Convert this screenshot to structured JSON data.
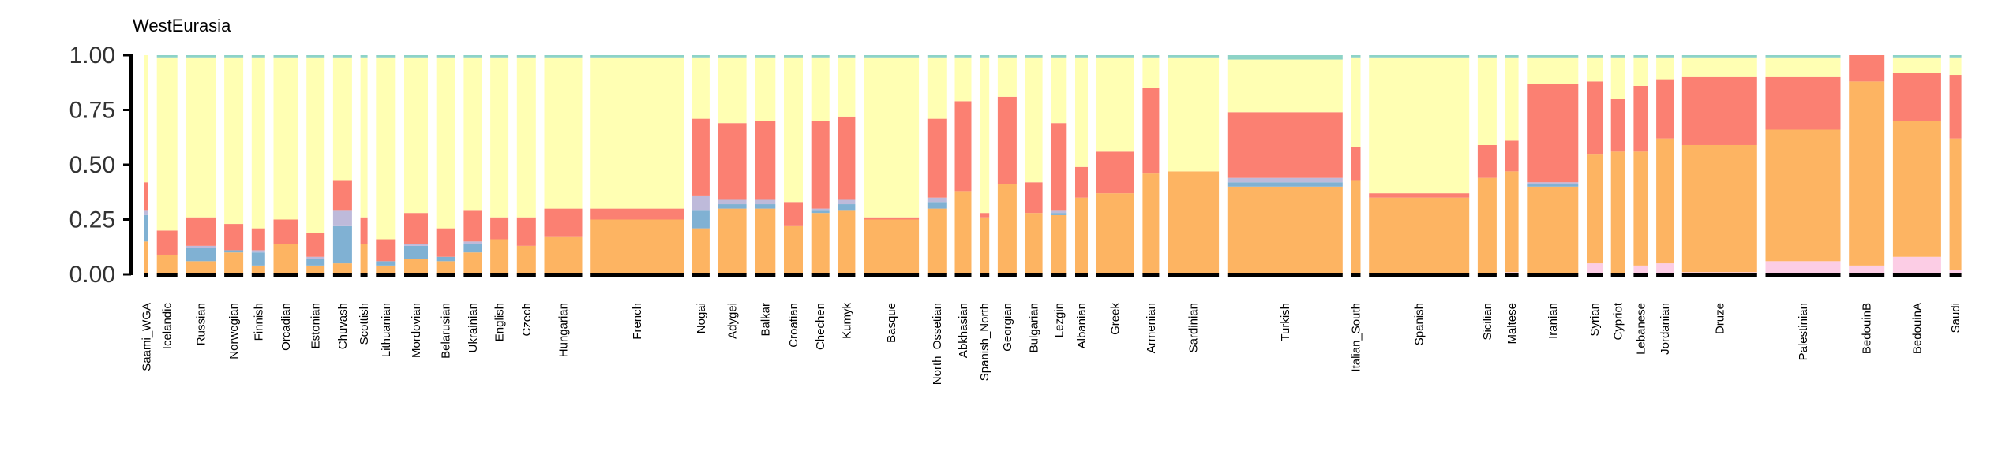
{
  "chart_data": {
    "type": "bar",
    "subtype": "stacked-admixture",
    "title": "WestEurasia",
    "ylim": [
      0,
      1
    ],
    "yticks": [
      "0.00",
      "0.25",
      "0.50",
      "0.75",
      "1.00"
    ],
    "grid": false,
    "colors": {
      "orange": "#fdb462",
      "blue": "#80b1d3",
      "lavender": "#bebada",
      "salmon": "#fb8072",
      "yellow": "#ffffb3",
      "pink": "#fccde5",
      "teal": "#8dd3c7",
      "group_bar": "#000000"
    },
    "components": [
      "pink",
      "orange",
      "blue",
      "lavender",
      "salmon",
      "yellow",
      "teal"
    ],
    "populations": [
      {
        "name": "Saami_WGA",
        "width": 5,
        "values": [
          0.0,
          0.15,
          0.12,
          0.02,
          0.13,
          0.58,
          0.0
        ]
      },
      {
        "name": "Icelandic",
        "width": 26,
        "values": [
          0.0,
          0.09,
          0.0,
          0.0,
          0.11,
          0.79,
          0.01
        ]
      },
      {
        "name": "Russian",
        "width": 38,
        "values": [
          0.0,
          0.06,
          0.06,
          0.01,
          0.13,
          0.73,
          0.01
        ]
      },
      {
        "name": "Norwegian",
        "width": 24,
        "values": [
          0.0,
          0.1,
          0.01,
          0.0,
          0.12,
          0.76,
          0.01
        ]
      },
      {
        "name": "Finnish",
        "width": 17,
        "values": [
          0.0,
          0.04,
          0.06,
          0.01,
          0.1,
          0.78,
          0.01
        ]
      },
      {
        "name": "Orcadian",
        "width": 31,
        "values": [
          0.0,
          0.14,
          0.0,
          0.0,
          0.11,
          0.74,
          0.01
        ]
      },
      {
        "name": "Estonian",
        "width": 23,
        "values": [
          0.0,
          0.04,
          0.03,
          0.01,
          0.11,
          0.8,
          0.01
        ]
      },
      {
        "name": "Chuvash",
        "width": 24,
        "values": [
          0.0,
          0.05,
          0.17,
          0.07,
          0.14,
          0.56,
          0.01
        ]
      },
      {
        "name": "Scottish",
        "width": 9,
        "values": [
          0.0,
          0.14,
          0.0,
          0.0,
          0.12,
          0.73,
          0.01
        ]
      },
      {
        "name": "Lithuanian",
        "width": 25,
        "values": [
          0.0,
          0.04,
          0.02,
          0.0,
          0.1,
          0.83,
          0.01
        ]
      },
      {
        "name": "Mordovian",
        "width": 30,
        "values": [
          0.0,
          0.07,
          0.06,
          0.01,
          0.14,
          0.71,
          0.01
        ]
      },
      {
        "name": "Belarusian",
        "width": 24,
        "values": [
          0.0,
          0.06,
          0.02,
          0.0,
          0.13,
          0.78,
          0.01
        ]
      },
      {
        "name": "Ukrainian",
        "width": 23,
        "values": [
          0.0,
          0.1,
          0.04,
          0.01,
          0.14,
          0.7,
          0.01
        ]
      },
      {
        "name": "English",
        "width": 23,
        "values": [
          0.0,
          0.16,
          0.0,
          0.0,
          0.1,
          0.73,
          0.01
        ]
      },
      {
        "name": "Czech",
        "width": 24,
        "values": [
          0.0,
          0.13,
          0.0,
          0.0,
          0.13,
          0.73,
          0.01
        ]
      },
      {
        "name": "Hungarian",
        "width": 48,
        "values": [
          0.0,
          0.17,
          0.0,
          0.0,
          0.13,
          0.69,
          0.01
        ]
      },
      {
        "name": "French",
        "width": 118,
        "values": [
          0.0,
          0.25,
          0.0,
          0.0,
          0.05,
          0.69,
          0.01
        ]
      },
      {
        "name": "Nogai",
        "width": 22,
        "values": [
          0.0,
          0.21,
          0.08,
          0.07,
          0.35,
          0.28,
          0.01
        ]
      },
      {
        "name": "Adygei",
        "width": 36,
        "values": [
          0.0,
          0.3,
          0.02,
          0.02,
          0.35,
          0.3,
          0.01
        ]
      },
      {
        "name": "Balkar",
        "width": 26,
        "values": [
          0.0,
          0.3,
          0.02,
          0.02,
          0.36,
          0.29,
          0.01
        ]
      },
      {
        "name": "Croatian",
        "width": 24,
        "values": [
          0.0,
          0.22,
          0.0,
          0.0,
          0.11,
          0.66,
          0.01
        ]
      },
      {
        "name": "Chechen",
        "width": 23,
        "values": [
          0.0,
          0.28,
          0.01,
          0.01,
          0.4,
          0.29,
          0.01
        ]
      },
      {
        "name": "Kumyk",
        "width": 22,
        "values": [
          0.0,
          0.29,
          0.03,
          0.02,
          0.38,
          0.27,
          0.01
        ]
      },
      {
        "name": "Basque",
        "width": 70,
        "values": [
          0.0,
          0.25,
          0.0,
          0.0,
          0.01,
          0.73,
          0.01
        ]
      },
      {
        "name": "North_Ossetian",
        "width": 24,
        "values": [
          0.0,
          0.3,
          0.03,
          0.02,
          0.36,
          0.28,
          0.01
        ]
      },
      {
        "name": "Abkhasian",
        "width": 21,
        "values": [
          0.0,
          0.38,
          0.0,
          0.0,
          0.41,
          0.2,
          0.01
        ]
      },
      {
        "name": "Spanish_North",
        "width": 12,
        "values": [
          0.0,
          0.26,
          0.0,
          0.0,
          0.02,
          0.71,
          0.01
        ]
      },
      {
        "name": "Georgian",
        "width": 24,
        "values": [
          0.0,
          0.41,
          0.0,
          0.0,
          0.4,
          0.18,
          0.01
        ]
      },
      {
        "name": "Bulgarian",
        "width": 22,
        "values": [
          0.0,
          0.28,
          0.0,
          0.0,
          0.14,
          0.57,
          0.01
        ]
      },
      {
        "name": "Lezgin",
        "width": 20,
        "values": [
          0.0,
          0.27,
          0.01,
          0.01,
          0.4,
          0.3,
          0.01
        ]
      },
      {
        "name": "Albanian",
        "width": 16,
        "values": [
          0.0,
          0.35,
          0.0,
          0.0,
          0.14,
          0.5,
          0.01
        ]
      },
      {
        "name": "Greek",
        "width": 48,
        "values": [
          0.0,
          0.37,
          0.0,
          0.0,
          0.19,
          0.43,
          0.01
        ]
      },
      {
        "name": "Armenian",
        "width": 21,
        "values": [
          0.0,
          0.46,
          0.0,
          0.0,
          0.39,
          0.14,
          0.01
        ]
      },
      {
        "name": "Sardinian",
        "width": 65,
        "values": [
          0.0,
          0.47,
          0.0,
          0.0,
          0.0,
          0.52,
          0.01
        ]
      },
      {
        "name": "Turkish",
        "width": 146,
        "values": [
          0.0,
          0.4,
          0.02,
          0.02,
          0.3,
          0.24,
          0.02
        ]
      },
      {
        "name": "Italian_South",
        "width": 12,
        "values": [
          0.0,
          0.43,
          0.0,
          0.0,
          0.15,
          0.41,
          0.01
        ]
      },
      {
        "name": "Spanish",
        "width": 127,
        "values": [
          0.0,
          0.35,
          0.0,
          0.0,
          0.02,
          0.62,
          0.01
        ]
      },
      {
        "name": "Sicilian",
        "width": 24,
        "values": [
          0.0,
          0.44,
          0.0,
          0.0,
          0.15,
          0.4,
          0.01
        ]
      },
      {
        "name": "Maltese",
        "width": 17,
        "values": [
          0.01,
          0.46,
          0.0,
          0.0,
          0.14,
          0.38,
          0.01
        ]
      },
      {
        "name": "Iranian",
        "width": 65,
        "values": [
          0.0,
          0.4,
          0.01,
          0.01,
          0.45,
          0.12,
          0.01
        ]
      },
      {
        "name": "Syrian",
        "width": 20,
        "values": [
          0.05,
          0.5,
          0.0,
          0.0,
          0.33,
          0.11,
          0.01
        ]
      },
      {
        "name": "Cypriot",
        "width": 18,
        "values": [
          0.0,
          0.56,
          0.0,
          0.0,
          0.24,
          0.19,
          0.01
        ]
      },
      {
        "name": "Lebanese",
        "width": 18,
        "values": [
          0.04,
          0.52,
          0.0,
          0.0,
          0.3,
          0.13,
          0.01
        ]
      },
      {
        "name": "Jordanian",
        "width": 22,
        "values": [
          0.05,
          0.57,
          0.0,
          0.0,
          0.27,
          0.1,
          0.01
        ]
      },
      {
        "name": "Druze",
        "width": 95,
        "values": [
          0.01,
          0.58,
          0.0,
          0.0,
          0.31,
          0.09,
          0.01
        ]
      },
      {
        "name": "Palestinian",
        "width": 95,
        "values": [
          0.06,
          0.6,
          0.0,
          0.0,
          0.24,
          0.09,
          0.01
        ]
      },
      {
        "name": "BedouinB",
        "width": 45,
        "values": [
          0.04,
          0.84,
          0.0,
          0.0,
          0.12,
          0.0,
          0.0
        ]
      },
      {
        "name": "BedouinA",
        "width": 61,
        "values": [
          0.08,
          0.62,
          0.0,
          0.0,
          0.22,
          0.07,
          0.01
        ]
      },
      {
        "name": "Saudi",
        "width": 15,
        "values": [
          0.02,
          0.6,
          0.0,
          0.0,
          0.29,
          0.08,
          0.01
        ]
      }
    ]
  }
}
